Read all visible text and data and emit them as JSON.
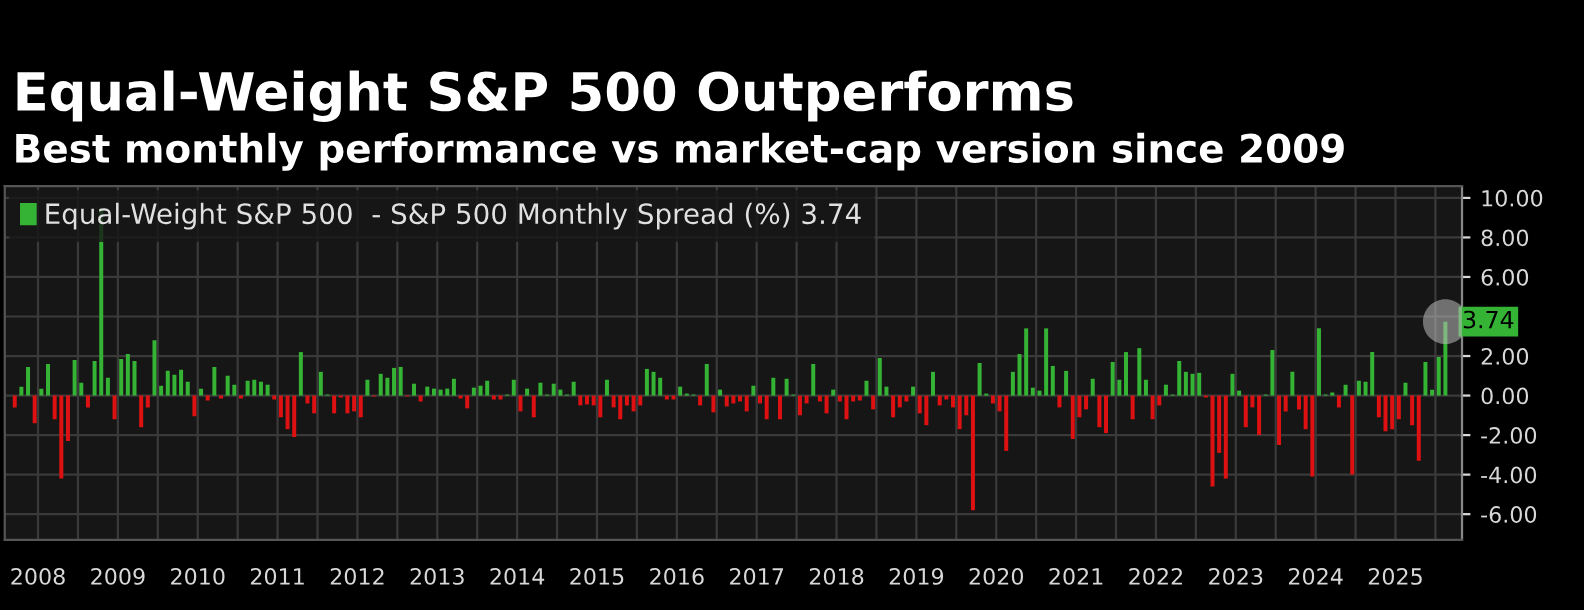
{
  "chart_data": {
    "type": "bar",
    "title": "Equal-Weight S&P 500 Outperforms",
    "subtitle": "Best monthly performance vs market-cap version since 2009",
    "x": [
      "2008-03",
      "2008-04",
      "2008-05",
      "2008-06",
      "2008-07",
      "2008-08",
      "2008-09",
      "2008-10",
      "2008-11",
      "2008-12",
      "2009-01",
      "2009-02",
      "2009-03",
      "2009-04",
      "2009-05",
      "2009-06",
      "2009-07",
      "2009-08",
      "2009-09",
      "2009-10",
      "2009-11",
      "2009-12",
      "2010-01",
      "2010-02",
      "2010-03",
      "2010-04",
      "2010-05",
      "2010-06",
      "2010-07",
      "2010-08",
      "2010-09",
      "2010-10",
      "2010-11",
      "2010-12",
      "2011-01",
      "2011-02",
      "2011-03",
      "2011-04",
      "2011-05",
      "2011-06",
      "2011-07",
      "2011-08",
      "2011-09",
      "2011-10",
      "2011-11",
      "2011-12",
      "2012-01",
      "2012-02",
      "2012-03",
      "2012-04",
      "2012-05",
      "2012-06",
      "2012-07",
      "2012-08",
      "2012-09",
      "2012-10",
      "2012-11",
      "2012-12",
      "2013-01",
      "2013-02",
      "2013-03",
      "2013-04",
      "2013-05",
      "2013-06",
      "2013-07",
      "2013-08",
      "2013-09",
      "2013-10",
      "2013-11",
      "2013-12",
      "2014-01",
      "2014-02",
      "2014-03",
      "2014-04",
      "2014-05",
      "2014-06",
      "2014-07",
      "2014-08",
      "2014-09",
      "2014-10",
      "2014-11",
      "2014-12",
      "2015-01",
      "2015-02",
      "2015-03",
      "2015-04",
      "2015-05",
      "2015-06",
      "2015-07",
      "2015-08",
      "2015-09",
      "2015-10",
      "2015-11",
      "2015-12",
      "2016-01",
      "2016-02",
      "2016-03",
      "2016-04",
      "2016-05",
      "2016-06",
      "2016-07",
      "2016-08",
      "2016-09",
      "2016-10",
      "2016-11",
      "2016-12",
      "2017-01",
      "2017-02",
      "2017-03",
      "2017-04",
      "2017-05",
      "2017-06",
      "2017-07",
      "2017-08",
      "2017-09",
      "2017-10",
      "2017-11",
      "2017-12",
      "2018-01",
      "2018-02",
      "2018-03",
      "2018-04",
      "2018-05",
      "2018-06",
      "2018-07",
      "2018-08",
      "2018-09",
      "2018-10",
      "2018-11",
      "2018-12",
      "2019-01",
      "2019-02",
      "2019-03",
      "2019-04",
      "2019-05",
      "2019-06",
      "2019-07",
      "2019-08",
      "2019-09",
      "2019-10",
      "2019-11",
      "2019-12",
      "2020-01",
      "2020-02",
      "2020-03",
      "2020-04",
      "2020-05",
      "2020-06",
      "2020-07",
      "2020-08",
      "2020-09",
      "2020-10",
      "2020-11",
      "2020-12",
      "2021-01",
      "2021-02",
      "2021-03",
      "2021-04",
      "2021-05",
      "2021-06",
      "2021-07",
      "2021-08",
      "2021-09",
      "2021-10",
      "2021-11",
      "2021-12",
      "2022-01",
      "2022-02",
      "2022-03",
      "2022-04",
      "2022-05",
      "2022-06",
      "2022-07",
      "2022-08",
      "2022-09",
      "2022-10",
      "2022-11",
      "2022-12",
      "2023-01",
      "2023-02",
      "2023-03",
      "2023-04",
      "2023-05",
      "2023-06",
      "2023-07",
      "2023-08",
      "2023-09",
      "2023-10",
      "2023-11",
      "2023-12",
      "2024-01",
      "2024-02",
      "2024-03",
      "2024-04",
      "2024-05",
      "2024-06",
      "2024-07",
      "2024-08",
      "2024-09",
      "2024-10",
      "2024-11",
      "2024-12",
      "2025-01",
      "2025-02",
      "2025-03",
      "2025-04",
      "2025-05",
      "2025-06",
      "2025-07",
      "2025-08",
      "2025-09",
      "2025-10",
      "2025-11",
      "2025-12",
      "2026-01",
      "2026-02"
    ],
    "series": [
      {
        "name": "Equal-Weight S&P 500  - S&P 500 Monthly Spread (%) 3.74",
        "color": "#35b335",
        "values": [
          -0.6,
          0.45,
          1.45,
          -1.4,
          0.35,
          1.6,
          -1.2,
          -4.2,
          -2.3,
          1.8,
          0.65,
          -0.6,
          1.75,
          9.5,
          0.9,
          -1.2,
          1.85,
          2.1,
          1.75,
          -1.6,
          -0.6,
          2.8,
          0.5,
          1.25,
          1.05,
          1.3,
          0.7,
          -1.05,
          0.35,
          -0.25,
          1.45,
          -0.15,
          1.0,
          0.55,
          -0.15,
          0.75,
          0.8,
          0.7,
          0.55,
          -0.2,
          -1.1,
          -1.7,
          -2.1,
          2.2,
          -0.4,
          -0.9,
          1.2,
          0.05,
          -0.9,
          -0.1,
          -0.9,
          -0.8,
          -1.1,
          0.8,
          -0.05,
          1.1,
          0.9,
          1.4,
          1.45,
          -0.05,
          0.6,
          -0.3,
          0.45,
          0.35,
          0.3,
          0.35,
          0.85,
          -0.15,
          -0.65,
          0.4,
          0.5,
          0.75,
          -0.2,
          -0.2,
          0.05,
          0.8,
          -0.8,
          0.35,
          -1.1,
          0.65,
          0.05,
          0.6,
          0.3,
          0.05,
          0.7,
          -0.5,
          -0.45,
          -0.5,
          -1.1,
          0.8,
          -0.6,
          -1.2,
          -0.5,
          -0.8,
          -0.5,
          1.35,
          1.2,
          0.9,
          -0.2,
          -0.2,
          0.45,
          0.1,
          0.05,
          -0.5,
          1.6,
          -0.85,
          0.3,
          -0.55,
          -0.4,
          -0.3,
          -0.8,
          0.5,
          -0.4,
          -1.2,
          0.9,
          -1.2,
          0.85,
          0.05,
          -1.0,
          -0.4,
          1.6,
          -0.3,
          -0.9,
          0.3,
          -0.3,
          -1.2,
          -0.3,
          -0.25,
          0.75,
          -0.7,
          1.9,
          0.45,
          -1.1,
          -0.6,
          -0.3,
          0.45,
          -0.9,
          -1.5,
          1.2,
          -0.5,
          -0.2,
          -0.6,
          -1.7,
          -1.0,
          -5.8,
          1.65,
          0.1,
          -0.4,
          -0.8,
          -2.8,
          1.2,
          2.1,
          3.4,
          0.4,
          0.25,
          3.4,
          1.5,
          -0.6,
          1.25,
          -2.2,
          -1.1,
          -0.7,
          0.85,
          -1.6,
          -1.9,
          1.7,
          0.8,
          2.2,
          -1.2,
          2.4,
          0.8,
          -1.2,
          -0.5,
          0.55,
          0.05,
          1.75,
          1.2,
          1.1,
          1.15,
          -0.1,
          -4.6,
          -2.9,
          -4.2,
          1.1,
          0.25,
          -1.6,
          -0.6,
          -2.0,
          0.05,
          2.3,
          -2.5,
          -0.8,
          1.2,
          -0.7,
          -1.7,
          -4.1,
          3.4,
          0.05,
          0.15,
          -0.6,
          0.55,
          -4.0,
          0.75,
          0.7,
          2.2,
          -1.1,
          -1.8,
          -1.7,
          -1.2,
          0.65,
          -1.5,
          -3.3,
          1.7,
          0.3,
          1.95,
          3.74
        ],
        "colors": [
          "#dd1111",
          "#35b335",
          "#35b335",
          "#dd1111",
          "#35b335",
          "#35b335",
          "#dd1111",
          "#dd1111",
          "#dd1111",
          "#35b335",
          "#35b335",
          "#dd1111",
          "#35b335",
          "#35b335",
          "#35b335",
          "#dd1111",
          "#35b335",
          "#35b335",
          "#35b335",
          "#dd1111",
          "#dd1111",
          "#35b335",
          "#35b335",
          "#35b335",
          "#35b335",
          "#35b335",
          "#35b335",
          "#dd1111",
          "#35b335",
          "#dd1111",
          "#35b335",
          "#dd1111",
          "#35b335",
          "#35b335",
          "#dd1111",
          "#35b335",
          "#35b335",
          "#35b335",
          "#35b335",
          "#dd1111",
          "#dd1111",
          "#dd1111",
          "#dd1111",
          "#35b335",
          "#dd1111",
          "#dd1111",
          "#35b335",
          "#35b335",
          "#dd1111",
          "#dd1111",
          "#dd1111",
          "#dd1111",
          "#dd1111",
          "#35b335",
          "#dd1111",
          "#35b335",
          "#35b335",
          "#35b335",
          "#35b335",
          "#dd1111",
          "#35b335",
          "#dd1111",
          "#35b335",
          "#35b335",
          "#35b335",
          "#35b335",
          "#35b335",
          "#dd1111",
          "#dd1111",
          "#35b335",
          "#35b335",
          "#35b335",
          "#dd1111",
          "#dd1111",
          "#35b335",
          "#35b335",
          "#dd1111",
          "#35b335",
          "#dd1111",
          "#35b335",
          "#35b335",
          "#35b335",
          "#35b335",
          "#35b335",
          "#35b335",
          "#dd1111",
          "#dd1111",
          "#dd1111",
          "#dd1111",
          "#35b335",
          "#dd1111",
          "#dd1111",
          "#dd1111",
          "#dd1111",
          "#dd1111",
          "#35b335",
          "#35b335",
          "#35b335",
          "#dd1111",
          "#dd1111",
          "#35b335",
          "#35b335",
          "#35b335",
          "#dd1111",
          "#35b335",
          "#dd1111",
          "#35b335",
          "#dd1111",
          "#dd1111",
          "#dd1111",
          "#dd1111",
          "#35b335",
          "#dd1111",
          "#dd1111",
          "#35b335",
          "#dd1111",
          "#35b335",
          "#35b335",
          "#dd1111",
          "#dd1111",
          "#35b335",
          "#dd1111",
          "#dd1111",
          "#35b335",
          "#dd1111",
          "#dd1111",
          "#dd1111",
          "#dd1111",
          "#35b335",
          "#dd1111",
          "#35b335",
          "#35b335",
          "#dd1111",
          "#dd1111",
          "#dd1111",
          "#35b335",
          "#dd1111",
          "#dd1111",
          "#35b335",
          "#dd1111",
          "#dd1111",
          "#dd1111",
          "#dd1111",
          "#dd1111",
          "#dd1111",
          "#35b335",
          "#35b335",
          "#dd1111",
          "#dd1111",
          "#dd1111",
          "#35b335",
          "#35b335",
          "#35b335",
          "#35b335",
          "#35b335",
          "#35b335",
          "#35b335",
          "#dd1111",
          "#35b335",
          "#dd1111",
          "#dd1111",
          "#dd1111",
          "#35b335",
          "#dd1111",
          "#dd1111",
          "#35b335",
          "#35b335",
          "#35b335",
          "#dd1111",
          "#35b335",
          "#35b335",
          "#dd1111",
          "#dd1111",
          "#35b335",
          "#35b335",
          "#35b335",
          "#35b335",
          "#35b335",
          "#35b335",
          "#dd1111",
          "#dd1111",
          "#dd1111",
          "#dd1111",
          "#35b335",
          "#35b335",
          "#dd1111",
          "#dd1111",
          "#dd1111",
          "#35b335",
          "#35b335",
          "#dd1111",
          "#dd1111",
          "#35b335",
          "#dd1111",
          "#dd1111",
          "#dd1111",
          "#35b335",
          "#35b335",
          "#35b335",
          "#dd1111",
          "#35b335",
          "#dd1111",
          "#35b335",
          "#35b335",
          "#35b335",
          "#dd1111",
          "#dd1111",
          "#dd1111",
          "#dd1111",
          "#35b335",
          "#dd1111",
          "#dd1111",
          "#35b335",
          "#35b335",
          "#35b335",
          "#35b335"
        ]
      }
    ],
    "annotations": [
      {
        "text": "3.74",
        "x": "2026-02",
        "y": 3.74
      }
    ],
    "xlim": [
      "2008-02",
      "2026-05"
    ],
    "xticks": [
      {
        "value": "2008-07",
        "label": "2008"
      },
      {
        "value": "2009-01",
        "label": null
      },
      {
        "value": "2009-07",
        "label": "2009"
      },
      {
        "value": "2010-01",
        "label": null
      },
      {
        "value": "2010-07",
        "label": "2010"
      },
      {
        "value": "2011-01",
        "label": null
      },
      {
        "value": "2011-07",
        "label": "2011"
      },
      {
        "value": "2012-01",
        "label": null
      },
      {
        "value": "2012-07",
        "label": "2012"
      },
      {
        "value": "2013-01",
        "label": null
      },
      {
        "value": "2013-07",
        "label": "2013"
      },
      {
        "value": "2014-01",
        "label": null
      },
      {
        "value": "2014-07",
        "label": "2014"
      },
      {
        "value": "2015-01",
        "label": null
      },
      {
        "value": "2015-07",
        "label": "2015"
      },
      {
        "value": "2016-01",
        "label": null
      },
      {
        "value": "2016-07",
        "label": "2016"
      },
      {
        "value": "2017-01",
        "label": null
      },
      {
        "value": "2017-07",
        "label": "2017"
      },
      {
        "value": "2018-01",
        "label": null
      },
      {
        "value": "2018-07",
        "label": "2018"
      },
      {
        "value": "2019-01",
        "label": null
      },
      {
        "value": "2019-07",
        "label": "2019"
      },
      {
        "value": "2020-01",
        "label": null
      },
      {
        "value": "2020-07",
        "label": "2020"
      },
      {
        "value": "2021-01",
        "label": null
      },
      {
        "value": "2021-07",
        "label": "2021"
      },
      {
        "value": "2022-01",
        "label": null
      },
      {
        "value": "2022-07",
        "label": "2022"
      },
      {
        "value": "2023-01",
        "label": null
      },
      {
        "value": "2023-07",
        "label": "2023"
      },
      {
        "value": "2024-01",
        "label": null
      },
      {
        "value": "2024-07",
        "label": "2024"
      },
      {
        "value": "2025-01",
        "label": null
      },
      {
        "value": "2025-07",
        "label": "2025"
      },
      {
        "value": "2026-01",
        "label": null
      }
    ],
    "ylim": [
      -7.3,
      10.6
    ],
    "yticks": [
      {
        "value": -6,
        "label": "-6.00"
      },
      {
        "value": -4,
        "label": "-4.00"
      },
      {
        "value": -2,
        "label": "-2.00"
      },
      {
        "value": 0,
        "label": "0.00"
      },
      {
        "value": 2,
        "label": "2.00"
      },
      {
        "value": 4,
        "label": null
      },
      {
        "value": 6,
        "label": "6.00"
      },
      {
        "value": 8,
        "label": "8.00"
      },
      {
        "value": 10,
        "label": "10.00"
      }
    ],
    "grid": true,
    "legend": "top left"
  }
}
